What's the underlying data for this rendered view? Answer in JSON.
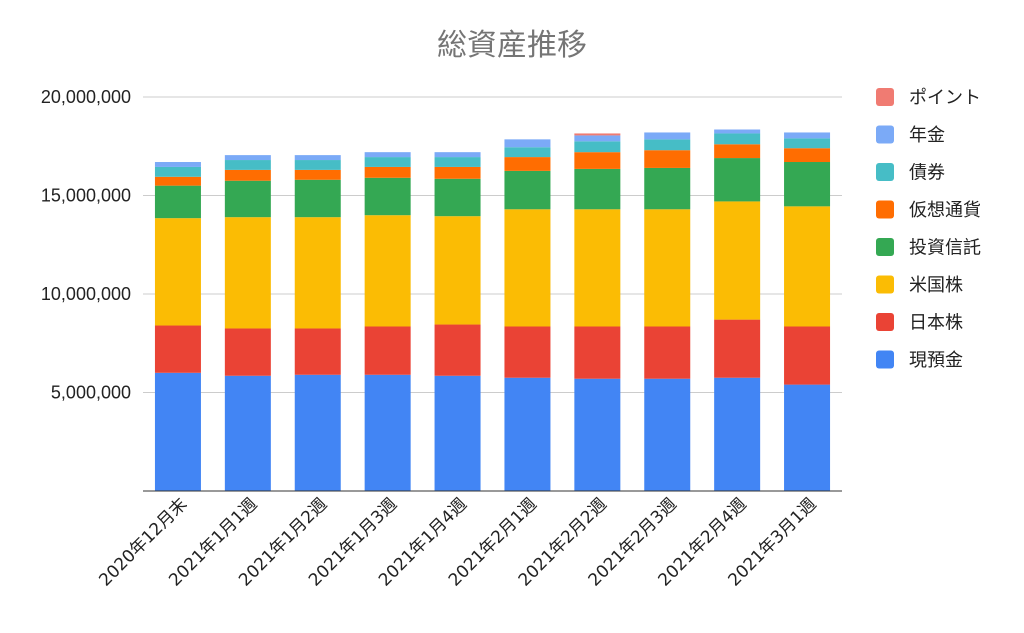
{
  "chart_data": {
    "type": "bar",
    "stacked": true,
    "title": "総資産推移",
    "categories": [
      "2020年12月末",
      "2021年1月1週",
      "2021年1月2週",
      "2021年1月3週",
      "2021年1月4週",
      "2021年2月1週",
      "2021年2月2週",
      "2021年2月3週",
      "2021年2月4週",
      "2021年3月1週"
    ],
    "ylim": [
      0,
      21500000
    ],
    "yticks": [
      5000000,
      10000000,
      15000000,
      20000000
    ],
    "ytick_labels": [
      "5,000,000",
      "10,000,000",
      "15,000,000",
      "20,000,000"
    ],
    "grid": true,
    "legend_position": "right",
    "series": [
      {
        "name": "現預金",
        "color": "#4285f4",
        "values": [
          6000000,
          5850000,
          5900000,
          5900000,
          5850000,
          5750000,
          5700000,
          5700000,
          5750000,
          5400000
        ]
      },
      {
        "name": "日本株",
        "color": "#ea4335",
        "values": [
          2400000,
          2400000,
          2350000,
          2450000,
          2600000,
          2600000,
          2650000,
          2650000,
          2950000,
          2950000
        ]
      },
      {
        "name": "米国株",
        "color": "#fbbc04",
        "values": [
          5450000,
          5650000,
          5650000,
          5650000,
          5500000,
          5950000,
          5950000,
          5950000,
          6000000,
          6100000
        ]
      },
      {
        "name": "投資信託",
        "color": "#34a853",
        "values": [
          1650000,
          1850000,
          1900000,
          1900000,
          1900000,
          1950000,
          2050000,
          2100000,
          2200000,
          2250000
        ]
      },
      {
        "name": "仮想通貨",
        "color": "#ff6d01",
        "values": [
          450000,
          550000,
          500000,
          550000,
          600000,
          700000,
          850000,
          900000,
          700000,
          700000
        ]
      },
      {
        "name": "債券",
        "color": "#46bdc6",
        "values": [
          500000,
          500000,
          500000,
          500000,
          500000,
          500000,
          550000,
          550000,
          550000,
          500000
        ]
      },
      {
        "name": "年金",
        "color": "#7baaf7",
        "values": [
          250000,
          250000,
          250000,
          250000,
          250000,
          400000,
          300000,
          350000,
          200000,
          300000
        ]
      },
      {
        "name": "ポイント",
        "color": "#f07b72",
        "values": [
          0,
          0,
          0,
          0,
          0,
          0,
          100000,
          0,
          0,
          0
        ]
      }
    ]
  }
}
